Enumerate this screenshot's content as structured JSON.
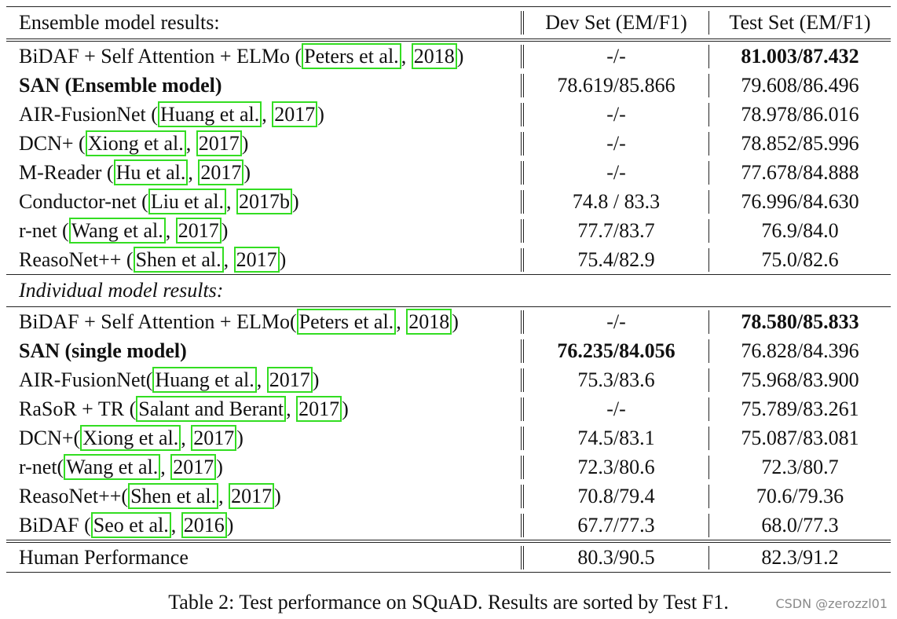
{
  "table": {
    "header": {
      "section_label": "Ensemble model results:",
      "dev_label": "Dev Set (EM/F1)",
      "test_label": "Test Set (EM/F1)"
    },
    "ensemble_rows": [
      {
        "pre": "BiDAF + Self Attention + ELMo (",
        "author": "Peters et al.",
        "sep": ", ",
        "year": "2018",
        "post": ")",
        "dev": "-/-",
        "test": "81.003/87.432",
        "bold_name": false,
        "bold_dev": false,
        "bold_test": true
      },
      {
        "pre": "SAN  (Ensemble model)",
        "author": "",
        "sep": "",
        "year": "",
        "post": "",
        "dev": "78.619/85.866",
        "test": "79.608/86.496",
        "bold_name": true,
        "bold_dev": false,
        "bold_test": false
      },
      {
        "pre": "AIR-FusionNet (",
        "author": "Huang et al.",
        "sep": ", ",
        "year": "2017",
        "post": ")",
        "dev": "-/-",
        "test": "78.978/86.016",
        "bold_name": false,
        "bold_dev": false,
        "bold_test": false
      },
      {
        "pre": "DCN+ (",
        "author": "Xiong et al.",
        "sep": ", ",
        "year": "2017",
        "post": ")",
        "dev": "-/-",
        "test": "78.852/85.996",
        "bold_name": false,
        "bold_dev": false,
        "bold_test": false
      },
      {
        "pre": "M-Reader (",
        "author": "Hu et al.",
        "sep": ", ",
        "year": "2017",
        "post": ")",
        "dev": "-/-",
        "test": "77.678/84.888",
        "bold_name": false,
        "bold_dev": false,
        "bold_test": false
      },
      {
        "pre": "Conductor-net (",
        "author": "Liu et al.",
        "sep": ", ",
        "year": "2017b",
        "post": ")",
        "dev": "74.8 / 83.3",
        "test": "76.996/84.630",
        "bold_name": false,
        "bold_dev": false,
        "bold_test": false
      },
      {
        "pre": "r-net (",
        "author": "Wang et al.",
        "sep": ", ",
        "year": "2017",
        "post": ")",
        "dev": "77.7/83.7",
        "test": "76.9/84.0",
        "bold_name": false,
        "bold_dev": false,
        "bold_test": false
      },
      {
        "pre": "ReasoNet++ (",
        "author": "Shen et al.",
        "sep": ", ",
        "year": "2017",
        "post": ")",
        "dev": "75.4/82.9",
        "test": "75.0/82.6",
        "bold_name": false,
        "bold_dev": false,
        "bold_test": false
      }
    ],
    "individual_label": "Individual model results:",
    "individual_rows": [
      {
        "pre": "BiDAF + Self Attention + ELMo(",
        "author": "Peters et al.",
        "sep": ", ",
        "year": "2018",
        "post": ")",
        "dev": "-/-",
        "test": "78.580/85.833",
        "bold_name": false,
        "bold_dev": false,
        "bold_test": true
      },
      {
        "pre": "SAN (single model)",
        "author": "",
        "sep": "",
        "year": "",
        "post": "",
        "dev": "76.235/84.056",
        "test": "76.828/84.396",
        "bold_name": true,
        "bold_dev": true,
        "bold_test": false
      },
      {
        "pre": "AIR-FusionNet(",
        "author": "Huang et al.",
        "sep": ", ",
        "year": "2017",
        "post": ")",
        "dev": "75.3/83.6",
        "test": "75.968/83.900",
        "bold_name": false,
        "bold_dev": false,
        "bold_test": false
      },
      {
        "pre": "RaSoR + TR (",
        "author": "Salant and Berant",
        "sep": ", ",
        "year": "2017",
        "post": ")",
        "dev": "-/-",
        "test": "75.789/83.261",
        "bold_name": false,
        "bold_dev": false,
        "bold_test": false
      },
      {
        "pre": "DCN+(",
        "author": "Xiong et al.",
        "sep": ", ",
        "year": "2017",
        "post": ")",
        "dev": "74.5/83.1",
        "test": "75.087/83.081",
        "bold_name": false,
        "bold_dev": false,
        "bold_test": false
      },
      {
        "pre": "r-net(",
        "author": "Wang et al.",
        "sep": ", ",
        "year": "2017",
        "post": ")",
        "dev": "72.3/80.6",
        "test": "72.3/80.7",
        "bold_name": false,
        "bold_dev": false,
        "bold_test": false
      },
      {
        "pre": "ReasoNet++(",
        "author": "Shen et al.",
        "sep": ", ",
        "year": "2017",
        "post": ")",
        "dev": "70.8/79.4",
        "test": "70.6/79.36",
        "bold_name": false,
        "bold_dev": false,
        "bold_test": false
      },
      {
        "pre": "BiDAF (",
        "author": "Seo et al.",
        "sep": ", ",
        "year": "2016",
        "post": ")",
        "dev": "67.7/77.3",
        "test": "68.0/77.3",
        "bold_name": false,
        "bold_dev": false,
        "bold_test": false
      }
    ],
    "human_row": {
      "name": "Human Performance",
      "dev": "80.3/90.5",
      "test": "82.3/91.2"
    }
  },
  "caption": "Table 2:  Test performance on SQuAD. Results are sorted by Test F1.",
  "watermark": "CSDN @zerozzl01",
  "colors": {
    "citation_box": "#33dd22",
    "rule": "#222222",
    "watermark": "#8a8a8a"
  }
}
